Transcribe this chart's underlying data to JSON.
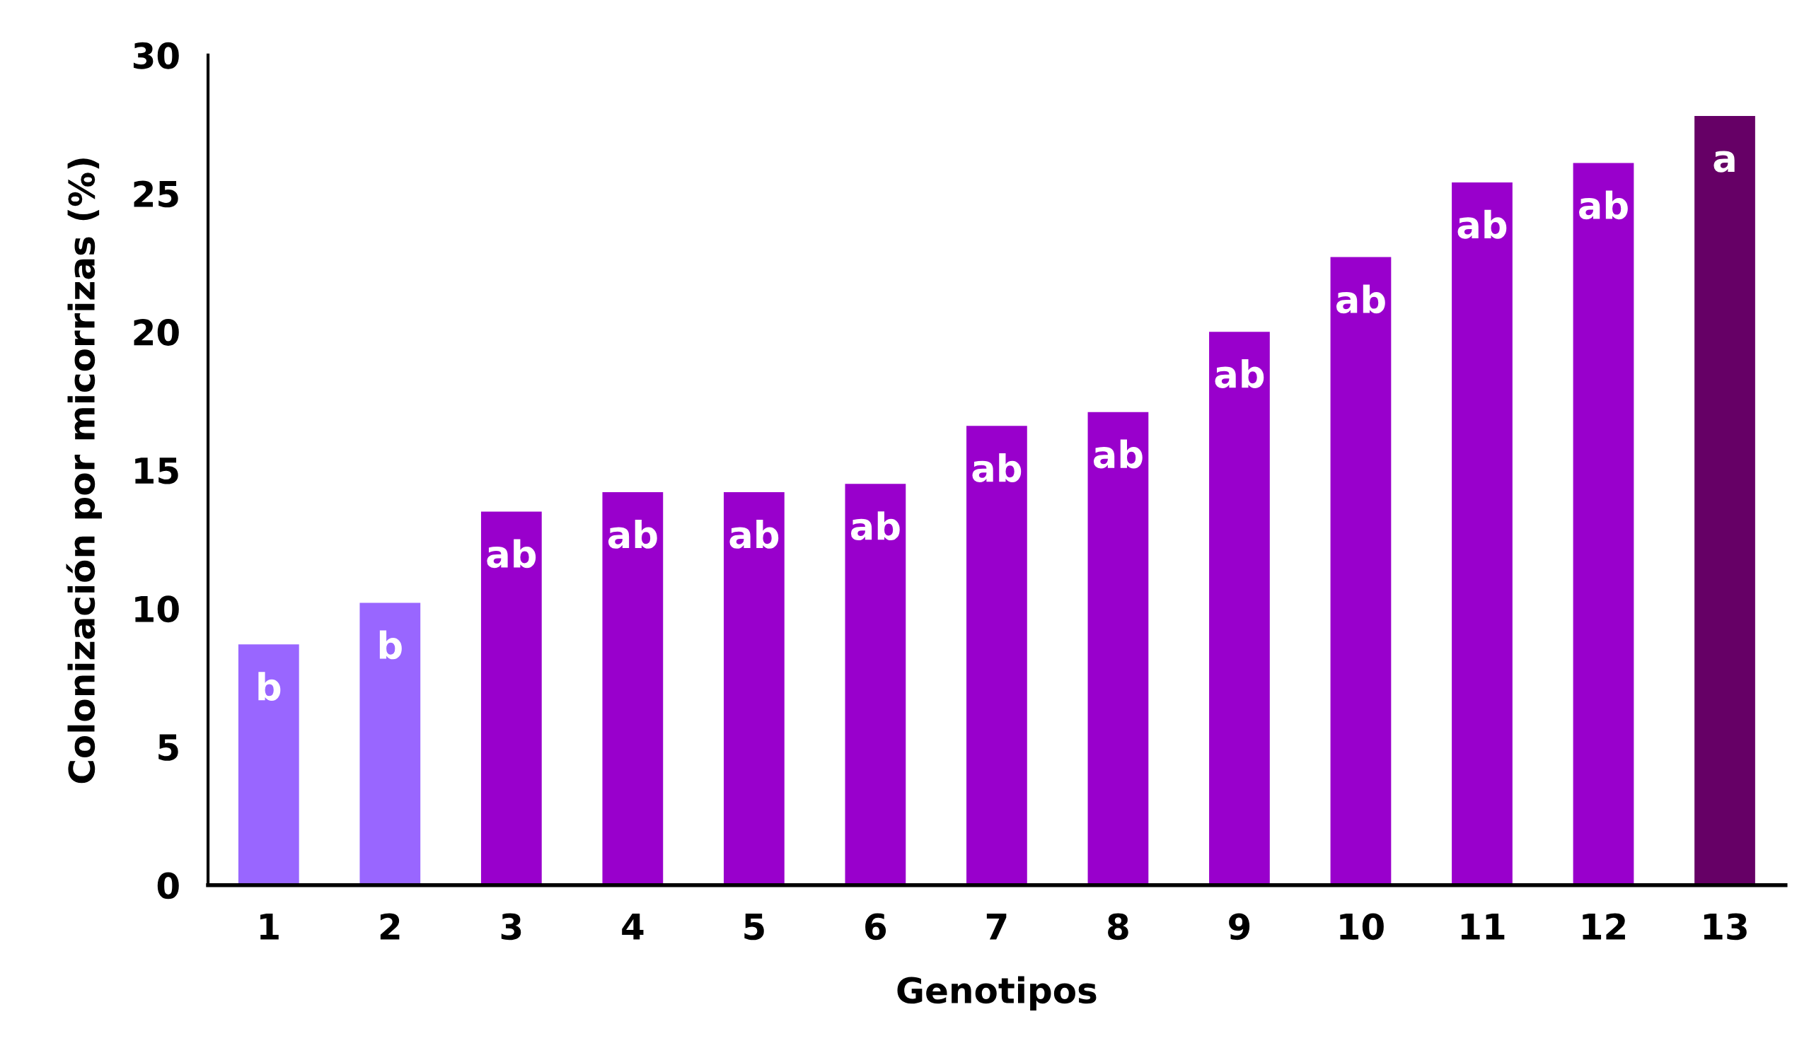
{
  "chart_data": {
    "type": "bar",
    "xlabel": "Genotipos",
    "ylabel": "Colonización por micorrizas (%)",
    "categories": [
      "1",
      "2",
      "3",
      "4",
      "5",
      "6",
      "7",
      "8",
      "9",
      "10",
      "11",
      "12",
      "13"
    ],
    "values": [
      8.7,
      10.2,
      13.5,
      14.2,
      14.2,
      14.5,
      16.6,
      17.1,
      20.0,
      22.7,
      25.4,
      26.1,
      27.8
    ],
    "colors": [
      "#9966ff",
      "#9966ff",
      "#9900cc",
      "#9900cc",
      "#9900cc",
      "#9900cc",
      "#9900cc",
      "#9900cc",
      "#9900cc",
      "#9900cc",
      "#9900cc",
      "#9900cc",
      "#660066"
    ],
    "ylim": [
      0,
      30
    ],
    "yticks": [
      0,
      5,
      10,
      15,
      20,
      25,
      30
    ],
    "grid": false,
    "annotations": [
      {
        "text": "b",
        "x": "1",
        "y": 8.7
      },
      {
        "text": "b",
        "x": "2",
        "y": 10.2
      },
      {
        "text": "ab",
        "x": "3",
        "y": 13.5
      },
      {
        "text": "ab",
        "x": "4",
        "y": 14.2
      },
      {
        "text": "ab",
        "x": "5",
        "y": 14.2
      },
      {
        "text": "ab",
        "x": "6",
        "y": 14.5
      },
      {
        "text": "ab",
        "x": "7",
        "y": 16.6
      },
      {
        "text": "ab",
        "x": "8",
        "y": 17.1
      },
      {
        "text": "ab",
        "x": "9",
        "y": 20.0
      },
      {
        "text": "ab",
        "x": "10",
        "y": 22.7
      },
      {
        "text": "ab",
        "x": "11",
        "y": 25.4
      },
      {
        "text": "ab",
        "x": "12",
        "y": 26.1
      },
      {
        "text": "a",
        "x": "13",
        "y": 27.8
      }
    ]
  }
}
